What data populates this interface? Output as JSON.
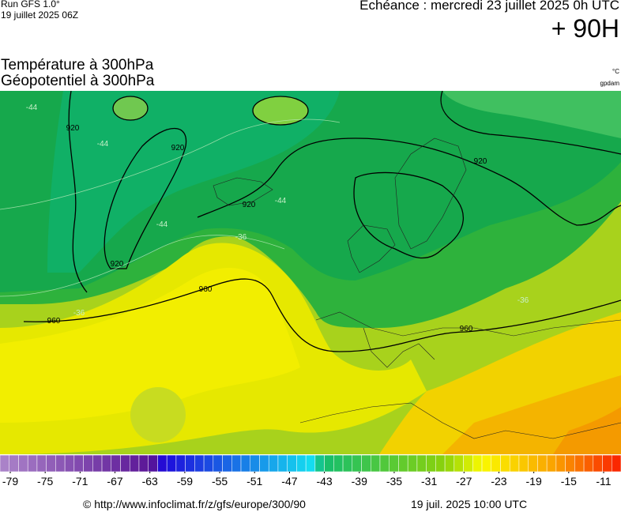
{
  "header": {
    "run": "Run GFS 1.0°",
    "run_date": "19 juillet 2025 06Z",
    "valid": "Echéance : mercredi 23 juillet 2025 0h UTC",
    "lead": "+ 90H"
  },
  "map": {
    "title_1": "Température à 300hPa",
    "title_2": "Géopotentiel à 300hPa",
    "unit_1": "°C",
    "unit_2": "gpdam",
    "contour_labels": [
      "920",
      "920",
      "920",
      "920",
      "920",
      "960",
      "960",
      "960",
      "-44",
      "-44",
      "-44",
      "-44",
      "-36",
      "-36",
      "-36"
    ]
  },
  "legend": {
    "ticks": [
      -79,
      -75,
      -71,
      -67,
      -63,
      -59,
      -55,
      -51,
      -47,
      -43,
      -39,
      -35,
      -31,
      -27,
      -23,
      -19,
      -15,
      -11
    ]
  },
  "footer": {
    "url": "© http://www.infoclimat.fr/z/gfs/europe/300/90",
    "generated": "19 juil. 2025 10:00 UTC"
  }
}
